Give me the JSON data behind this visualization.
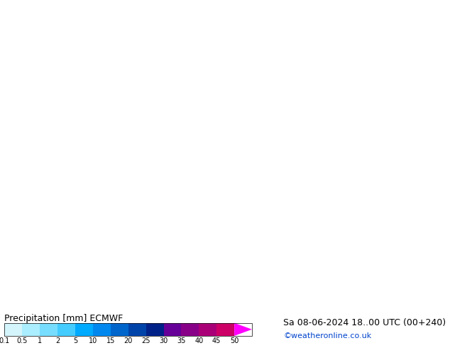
{
  "title_left": "Precipitation [mm] ECMWF",
  "title_right": "Sa 08-06-2024 18..00 UTC (00+240)",
  "credit": "©weatheronline.co.uk",
  "colorbar_values": [
    0.1,
    0.5,
    1,
    2,
    5,
    10,
    15,
    20,
    25,
    30,
    35,
    40,
    45,
    50
  ],
  "colorbar_colors": [
    "#d4f5fc",
    "#aaeeff",
    "#77ddff",
    "#44ccff",
    "#00aaff",
    "#0088ee",
    "#0066cc",
    "#0044aa",
    "#002288",
    "#660099",
    "#880088",
    "#aa0077",
    "#cc0066",
    "#ff00ff"
  ],
  "map_bg_color": "#aaddaa",
  "sea_color": "#aaccee",
  "fig_width": 6.34,
  "fig_height": 4.9,
  "dpi": 100,
  "bottom_bar_height": 0.1,
  "title_fontsize": 9,
  "credit_fontsize": 8,
  "tick_fontsize": 7,
  "bottom_bg_color": "#ffffff"
}
